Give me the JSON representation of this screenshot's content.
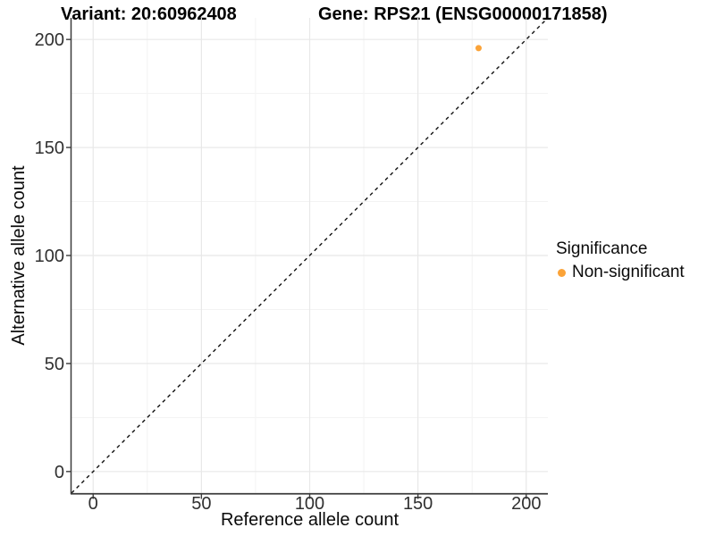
{
  "chart_data": {
    "type": "scatter",
    "title_left": "Variant: 20:60962408",
    "title_right": "Gene: RPS21 (ENSG00000171858)",
    "xlabel": "Reference allele count",
    "ylabel": "Alternative allele count",
    "xlim": [
      -10,
      210
    ],
    "ylim": [
      -10,
      210
    ],
    "x_ticks": [
      0,
      50,
      100,
      150,
      200
    ],
    "y_ticks": [
      0,
      50,
      100,
      150,
      200
    ],
    "x_minor_ticks": [
      25,
      75,
      125,
      175
    ],
    "y_minor_ticks": [
      25,
      75,
      125,
      175
    ],
    "grid": "major+minor",
    "legend_position": "right",
    "legend": {
      "title": "Significance",
      "items": [
        {
          "label": "Non-significant",
          "color": "#FBA338"
        }
      ]
    },
    "series": [
      {
        "name": "Non-significant",
        "color": "#FBA338",
        "points": [
          [
            178,
            196
          ]
        ]
      }
    ],
    "reference_line": {
      "kind": "identity",
      "from": [
        -10,
        -10
      ],
      "to": [
        210,
        210
      ],
      "style": "dashed",
      "color": "#111111"
    },
    "colors": {
      "major_grid": "#E8E8E8",
      "minor_grid": "#F3F3F3",
      "axis_line": "#3c3c3c",
      "tick_label": "#303030"
    }
  }
}
